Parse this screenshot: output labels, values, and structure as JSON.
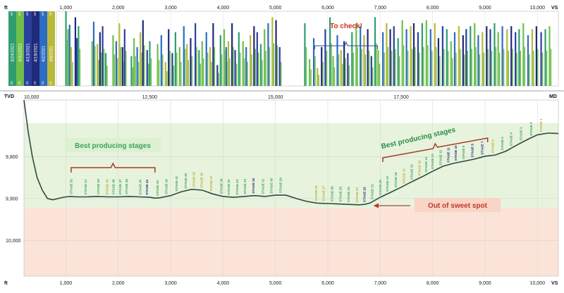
{
  "chart_data": [
    {
      "type": "bar",
      "panel": "production-logs-by-date",
      "x_unit": "ft",
      "x_unit_right": "VS",
      "x_ticks": [
        "1,000",
        "2,000",
        "3,000",
        "4,000",
        "5,000",
        "6,000",
        "7,000",
        "8,000",
        "9,000",
        "10,000"
      ],
      "xlim": [
        200,
        10400
      ],
      "ylim": [
        0,
        5
      ],
      "series": [
        {
          "name": "3/24/2021",
          "color": "#2e9e6e",
          "max": "5",
          "min": "0"
        },
        {
          "name": "3/31/2021",
          "color": "#6fbf4a",
          "max": "5",
          "min": "0"
        },
        {
          "name": "4/13/2021",
          "color": "#2a3f9e",
          "max": "5",
          "min": "0"
        },
        {
          "name": "4/19/2021",
          "color": "#1f2a7a",
          "max": "5",
          "min": "0"
        },
        {
          "name": "4/2/2021",
          "color": "#2b6cc4",
          "max": "5",
          "min": "0"
        },
        {
          "name": "4/8/2021",
          "color": "#b9b83a",
          "max": "5",
          "min": "0"
        }
      ],
      "bar_positions": [
        1000,
        1040,
        1070,
        1100,
        1180,
        1210,
        1240,
        1500,
        1530,
        1600,
        1650,
        1700,
        1760,
        1900,
        1960,
        2020,
        2080,
        2120,
        2250,
        2300,
        2360,
        2420,
        2470,
        2550,
        2600,
        2750,
        2820,
        2900,
        2960,
        3030,
        3090,
        3170,
        3250,
        3310,
        3380,
        3470,
        3540,
        3600,
        3680,
        3750,
        3810,
        3890,
        3950,
        4020,
        4060,
        4100,
        4170,
        4230,
        4300,
        4380,
        4440,
        4520,
        4590,
        4650,
        4720,
        4790,
        4860,
        4940,
        5010,
        5080,
        5560,
        5650,
        5730,
        5800,
        5880,
        5950,
        6040,
        6100,
        6180,
        6250,
        6310,
        6380,
        6460,
        6540,
        6620,
        6690,
        6760,
        6830,
        6900,
        6960,
        7050,
        7120,
        7190,
        7260,
        7340,
        7420,
        7500,
        7580,
        7640,
        7720,
        7800,
        7880,
        7960,
        8040,
        8110,
        8190,
        8270,
        8350,
        8420,
        8500,
        8580,
        8640,
        8720,
        8800,
        8870,
        8950,
        9030,
        9100,
        9180,
        9250,
        9330,
        9420,
        9500,
        9580,
        9650,
        9730,
        9820,
        9900,
        9980,
        10070,
        10150,
        10230
      ],
      "bar_heights": [
        5,
        3.8,
        4.1,
        2.6,
        4.6,
        3.2,
        4.0,
        3.0,
        4.3,
        2.8,
        3.6,
        4.0,
        2.2,
        3.4,
        3.0,
        4.2,
        2.6,
        3.8,
        2.0,
        3.2,
        2.6,
        3.6,
        4.4,
        2.4,
        3.0,
        2.8,
        3.4,
        1.6,
        3.8,
        2.2,
        3.6,
        2.6,
        4.0,
        2.8,
        3.2,
        4.2,
        2.4,
        3.0,
        3.6,
        2.6,
        4.2,
        1.4,
        3.4,
        3.8,
        2.6,
        3.0,
        4.2,
        2.4,
        3.6,
        3.0,
        2.6,
        3.4,
        4.0,
        3.6,
        2.8,
        3.8,
        4.2,
        4.6,
        4.4,
        2.6,
        4.2,
        1.8,
        3.2,
        1.2,
        2.6,
        3.8,
        4.6,
        2.0,
        3.4,
        2.4,
        3.0,
        2.2,
        3.6,
        4.2,
        4.0,
        3.4,
        3.8,
        2.0,
        4.6,
        2.4,
        3.6,
        4.2,
        3.8,
        4.0,
        3.2,
        4.4,
        3.8,
        4.0,
        4.2,
        3.6,
        4.2,
        4.4,
        3.8,
        4.2,
        3.2,
        4.0,
        3.8,
        3.0,
        3.6,
        4.0,
        3.4,
        3.8,
        4.0,
        4.2,
        3.4,
        3.6,
        4.0,
        3.8,
        4.2,
        3.6,
        4.0,
        3.8,
        4.0,
        3.6,
        3.8,
        4.2,
        3.4,
        3.8,
        4.0,
        3.6,
        3.8,
        4.0
      ],
      "annotation": {
        "text": "To check!",
        "bracket_from": 5750,
        "bracket_to": 6950
      }
    },
    {
      "type": "line",
      "panel": "well-trajectory",
      "y_unit": "TVD",
      "x_unit_top": "MD",
      "x_unit_bottom": "ft",
      "x_unit_bottom_right": "VS",
      "md_ticks": [
        "10,000",
        "12,500",
        "15,000",
        "17,500"
      ],
      "md_tick_vs": [
        200,
        2600,
        5000,
        7400
      ],
      "vs_ticks": [
        "1,000",
        "2,000",
        "3,000",
        "4,000",
        "5,000",
        "6,000",
        "7,000",
        "8,000",
        "9,000",
        "10,000"
      ],
      "y_ticks": [
        "9,800",
        "9,900",
        "10,000"
      ],
      "xlim": [
        200,
        10400
      ],
      "ylim": [
        9665,
        10085
      ],
      "sweet_spot_range": [
        9720,
        9923
      ],
      "trajectory": {
        "x": [
          200,
          280,
          360,
          450,
          550,
          650,
          750,
          850,
          950,
          1000,
          1100,
          1200,
          1400,
          1600,
          1800,
          2000,
          2200,
          2400,
          2600,
          2700,
          2800,
          3000,
          3200,
          3400,
          3600,
          3650,
          3800,
          4000,
          4200,
          4400,
          4600,
          4800,
          5000,
          5200,
          5400,
          5600,
          5800,
          6000,
          6200,
          6400,
          6600,
          6700,
          6800,
          7000,
          7200,
          7400,
          7600,
          7800,
          8000,
          8200,
          8400,
          8600,
          8800,
          9000,
          9200,
          9400,
          9600,
          9800,
          10000,
          10200,
          10400
        ],
        "y": [
          9665,
          9740,
          9800,
          9850,
          9880,
          9900,
          9903,
          9900,
          9897,
          9896,
          9895,
          9896,
          9896,
          9895,
          9896,
          9896,
          9895,
          9896,
          9897,
          9899,
          9898,
          9893,
          9884,
          9878,
          9880,
          9882,
          9889,
          9895,
          9897,
          9895,
          9893,
          9895,
          9892,
          9892,
          9900,
          9907,
          9911,
          9912,
          9913,
          9914,
          9915,
          9914,
          9911,
          9897,
          9885,
          9873,
          9860,
          9848,
          9835,
          9823,
          9816,
          9811,
          9806,
          9799,
          9796,
          9787,
          9773,
          9760,
          9748,
          9744,
          9745
        ]
      },
      "stages": [
        {
          "label": "STAGE 52",
          "vs": 1100,
          "color": "#3aa35a"
        },
        {
          "label": "STAGE 51",
          "vs": 1380,
          "color": "#3aa35a"
        },
        {
          "label": "STAGE 50",
          "vs": 1620,
          "color": "#3aa35a"
        },
        {
          "label": "STAGE 49",
          "vs": 1790,
          "color": "#b0b030"
        },
        {
          "label": "STAGE 48",
          "vs": 1910,
          "color": "#3aa35a"
        },
        {
          "label": "STAGE 47",
          "vs": 2040,
          "color": "#3aa35a"
        },
        {
          "label": "STAGE 46",
          "vs": 2160,
          "color": "#3aa35a"
        },
        {
          "label": "STAGE 45",
          "vs": 2420,
          "color": "#3aa35a"
        },
        {
          "label": "STAGE 44",
          "vs": 2550,
          "color": "#1f2a7a"
        },
        {
          "label": "STAGE 43",
          "vs": 2750,
          "color": "#3aa35a"
        },
        {
          "label": "STAGE 42",
          "vs": 2920,
          "color": "#3aa35a"
        },
        {
          "label": "STAGE 41",
          "vs": 3110,
          "color": "#3aa35a"
        },
        {
          "label": "STAGE 40",
          "vs": 3290,
          "color": "#3aa35a"
        },
        {
          "label": "STAGE 39",
          "vs": 3440,
          "color": "#b0b030"
        },
        {
          "label": "STAGE 38",
          "vs": 3590,
          "color": "#b0b030"
        },
        {
          "label": "STAGE 37",
          "vs": 3770,
          "color": "#b0b030"
        },
        {
          "label": "STAGE 36",
          "vs": 3970,
          "color": "#3aa35a"
        },
        {
          "label": "STAGE 35",
          "vs": 4110,
          "color": "#3aa35a"
        },
        {
          "label": "STAGE 34",
          "vs": 4270,
          "color": "#3aa35a"
        },
        {
          "label": "STAGE 33",
          "vs": 4420,
          "color": "#3aa35a"
        },
        {
          "label": "STAGE 32",
          "vs": 4580,
          "color": "#1f2a7a"
        },
        {
          "label": "STAGE 31",
          "vs": 4760,
          "color": "#3aa35a"
        },
        {
          "label": "STAGE 30",
          "vs": 4920,
          "color": "#3aa35a"
        },
        {
          "label": "STAGE 29",
          "vs": 5100,
          "color": "#3aa35a"
        },
        {
          "label": "STAGE 28",
          "vs": 5780,
          "color": "#b0b030"
        },
        {
          "label": "STAGE 27",
          "vs": 5920,
          "color": "#b0b030"
        },
        {
          "label": "STAGE 26",
          "vs": 6080,
          "color": "#3aa35a"
        },
        {
          "label": "STAGE 25",
          "vs": 6240,
          "color": "#3aa35a"
        },
        {
          "label": "STAGE 24",
          "vs": 6400,
          "color": "#3aa35a"
        },
        {
          "label": "STAGE 23",
          "vs": 6560,
          "color": "#b0b030"
        },
        {
          "label": "STAGE 22",
          "vs": 6700,
          "color": "#1f2a7a"
        },
        {
          "label": "STAGE 21",
          "vs": 6850,
          "color": "#3aa35a"
        },
        {
          "label": "STAGE 20",
          "vs": 7000,
          "color": "#3aa35a"
        },
        {
          "label": "STAGE 19",
          "vs": 7140,
          "color": "#3aa35a"
        },
        {
          "label": "STAGE 18",
          "vs": 7300,
          "color": "#3aa35a"
        },
        {
          "label": "STAGE 17",
          "vs": 7450,
          "color": "#b0b030"
        },
        {
          "label": "STAGE 16",
          "vs": 7600,
          "color": "#3aa35a"
        },
        {
          "label": "STAGE 15",
          "vs": 7750,
          "color": "#b0b030"
        },
        {
          "label": "STAGE 14",
          "vs": 7880,
          "color": "#3aa35a"
        },
        {
          "label": "STAGE 13",
          "vs": 8000,
          "color": "#3aa35a"
        },
        {
          "label": "STAGE 12",
          "vs": 8150,
          "color": "#3aa35a"
        },
        {
          "label": "STAGE 11",
          "vs": 8300,
          "color": "#1f2a7a"
        },
        {
          "label": "STAGE 10",
          "vs": 8440,
          "color": "#1f2a7a"
        },
        {
          "label": "STAGE 9",
          "vs": 8590,
          "color": "#3aa35a"
        },
        {
          "label": "STAGE 8",
          "vs": 8760,
          "color": "#1f2a7a"
        },
        {
          "label": "STAGE 7",
          "vs": 8950,
          "color": "#1f2a7a"
        },
        {
          "label": "STAGE 6",
          "vs": 9150,
          "color": "#b0b030"
        },
        {
          "label": "STAGE 5",
          "vs": 9330,
          "color": "#3aa35a"
        },
        {
          "label": "STAGE 4",
          "vs": 9500,
          "color": "#3aa35a"
        },
        {
          "label": "STAGE 3",
          "vs": 9690,
          "color": "#3aa35a"
        },
        {
          "label": "STAGE 2",
          "vs": 9880,
          "color": "#3aa35a"
        },
        {
          "label": "STAGE 1",
          "vs": 10070,
          "color": "#b0b030"
        }
      ],
      "annotations": [
        {
          "text": "Best producing stages",
          "style": "green-box",
          "bracket_from": 1100,
          "bracket_to": 2700
        },
        {
          "text": "Best producing stages",
          "style": "rotated",
          "bracket_from": 7050,
          "bracket_to": 9050
        },
        {
          "text": "Out of sweet spot",
          "style": "red-box",
          "arrow_to_vs": 6800
        }
      ]
    }
  ]
}
